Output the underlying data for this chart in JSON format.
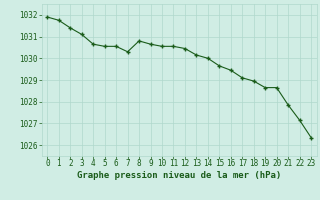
{
  "x": [
    0,
    1,
    2,
    3,
    4,
    5,
    6,
    7,
    8,
    9,
    10,
    11,
    12,
    13,
    14,
    15,
    16,
    17,
    18,
    19,
    20,
    21,
    22,
    23
  ],
  "y": [
    1031.9,
    1031.75,
    1031.4,
    1031.1,
    1030.65,
    1030.55,
    1030.55,
    1030.3,
    1030.8,
    1030.65,
    1030.55,
    1030.55,
    1030.45,
    1030.15,
    1030.0,
    1029.65,
    1029.45,
    1029.1,
    1028.95,
    1028.65,
    1028.65,
    1027.85,
    1027.15,
    1026.35
  ],
  "line_color": "#1a5c1a",
  "marker": "+",
  "marker_size": 3.5,
  "marker_lw": 1.0,
  "bg_color": "#d0ede4",
  "grid_color": "#b0d8cc",
  "xlabel": "Graphe pression niveau de la mer (hPa)",
  "xlabel_color": "#1a5c1a",
  "xlabel_fontsize": 6.5,
  "ylabel_ticks": [
    1026,
    1027,
    1028,
    1029,
    1030,
    1031,
    1032
  ],
  "xlim": [
    -0.5,
    23.5
  ],
  "ylim": [
    1025.5,
    1032.5
  ],
  "tick_fontsize": 5.5,
  "tick_color": "#1a5c1a",
  "line_width": 0.8
}
